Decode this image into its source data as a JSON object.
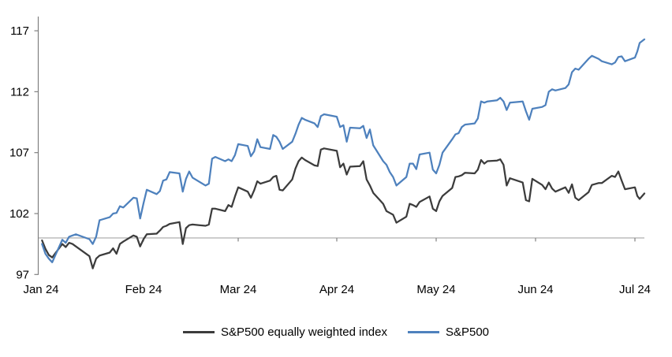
{
  "chart_data": {
    "type": "line",
    "title": "",
    "x_axis": {
      "unit": "days-from-2024-01-01",
      "tick_labels": [
        "Jan 24",
        "Feb 24",
        "Mar 24",
        "Apr 24",
        "May 24",
        "Jun 24",
        "Jul 24"
      ],
      "tick_day_offsets": [
        0,
        31,
        60,
        91,
        121,
        152,
        182
      ]
    },
    "y_axis": {
      "ticks": [
        97,
        102,
        107,
        112,
        117
      ],
      "min": 97,
      "max": 117
    },
    "baseline": {
      "value": 100
    },
    "grid": "off",
    "legend_position": "bottom",
    "day_offsets": [
      1,
      2,
      3,
      4,
      7,
      8,
      9,
      10,
      11,
      15,
      16,
      17,
      18,
      21,
      22,
      23,
      24,
      25,
      28,
      29,
      30,
      31,
      32,
      35,
      36,
      37,
      38,
      39,
      42,
      43,
      44,
      45,
      46,
      50,
      51,
      52,
      53,
      56,
      57,
      58,
      59,
      60,
      63,
      64,
      65,
      66,
      67,
      70,
      71,
      72,
      73,
      74,
      77,
      78,
      79,
      80,
      81,
      84,
      85,
      86,
      87,
      91,
      92,
      93,
      94,
      95,
      98,
      99,
      100,
      101,
      102,
      105,
      106,
      107,
      108,
      109,
      112,
      113,
      114,
      115,
      116,
      119,
      120,
      121,
      122,
      123,
      126,
      127,
      128,
      129,
      130,
      133,
      134,
      135,
      136,
      137,
      140,
      141,
      142,
      143,
      144,
      148,
      149,
      150,
      151,
      154,
      155,
      156,
      157,
      158,
      161,
      162,
      163,
      164,
      165,
      168,
      169,
      171,
      172,
      175,
      176,
      177,
      178,
      179,
      182,
      183,
      184,
      186
    ],
    "series": [
      {
        "name": "S&P500 equally weighted index",
        "color": "#3C3C3C",
        "values": [
          99.8,
          99.1,
          98.6,
          98.4,
          99.5,
          99.25,
          99.6,
          99.5,
          99.3,
          98.5,
          97.5,
          98.3,
          98.55,
          98.8,
          99.15,
          98.7,
          99.5,
          99.7,
          100.2,
          100.1,
          99.3,
          99.9,
          100.3,
          100.35,
          100.6,
          100.9,
          101.0,
          101.15,
          101.3,
          99.5,
          100.8,
          101.05,
          101.1,
          101.0,
          101.1,
          102.4,
          102.4,
          102.2,
          102.7,
          102.55,
          103.4,
          104.15,
          103.8,
          103.3,
          103.9,
          104.65,
          104.45,
          104.7,
          105.0,
          105.1,
          103.95,
          103.9,
          104.8,
          105.7,
          106.3,
          106.6,
          106.4,
          105.95,
          105.9,
          107.25,
          107.35,
          107.15,
          105.8,
          106.1,
          105.2,
          105.85,
          105.9,
          106.3,
          104.8,
          104.3,
          103.7,
          102.8,
          102.2,
          102.05,
          101.9,
          101.25,
          101.75,
          102.8,
          102.7,
          102.55,
          102.95,
          103.4,
          102.4,
          102.2,
          103.0,
          103.45,
          104.1,
          105.0,
          105.05,
          105.15,
          105.35,
          105.3,
          105.6,
          106.4,
          106.1,
          106.3,
          106.35,
          106.45,
          106.0,
          104.3,
          104.9,
          104.55,
          103.1,
          103.0,
          104.85,
          104.35,
          104.0,
          104.55,
          104.05,
          103.8,
          104.15,
          103.7,
          104.4,
          103.3,
          103.1,
          103.75,
          104.35,
          104.5,
          104.5,
          105.1,
          105.0,
          105.45,
          104.7,
          104.0,
          104.15,
          103.45,
          103.2,
          103.65
        ]
      },
      {
        "name": "S&P500",
        "color": "#4E81BD",
        "values": [
          99.5,
          98.7,
          98.3,
          98.0,
          99.85,
          99.6,
          100.1,
          100.2,
          100.3,
          99.9,
          99.5,
          100.1,
          101.45,
          101.7,
          102.0,
          102.05,
          102.6,
          102.5,
          103.3,
          103.25,
          101.6,
          102.85,
          103.95,
          103.6,
          103.85,
          104.7,
          104.8,
          105.4,
          105.3,
          103.8,
          104.85,
          105.45,
          104.95,
          104.3,
          104.45,
          106.5,
          106.65,
          106.3,
          106.45,
          106.3,
          106.8,
          107.7,
          107.55,
          106.7,
          107.1,
          108.1,
          107.45,
          107.3,
          108.45,
          108.3,
          107.9,
          107.3,
          107.9,
          108.55,
          109.3,
          109.85,
          109.7,
          109.4,
          109.1,
          110.0,
          110.15,
          109.95,
          109.1,
          109.25,
          107.9,
          109.05,
          109.0,
          109.2,
          108.2,
          108.9,
          107.6,
          106.3,
          106.0,
          105.4,
          105.0,
          104.3,
          105.0,
          106.1,
          106.1,
          105.65,
          106.85,
          107.0,
          105.6,
          105.3,
          106.0,
          107.0,
          108.1,
          108.5,
          108.6,
          109.1,
          109.3,
          109.4,
          109.8,
          111.2,
          111.1,
          111.2,
          111.3,
          111.5,
          111.2,
          110.5,
          111.1,
          111.2,
          110.4,
          109.7,
          110.6,
          110.75,
          110.9,
          112.0,
          112.2,
          112.1,
          112.3,
          112.6,
          113.6,
          113.9,
          113.8,
          114.7,
          114.95,
          114.7,
          114.5,
          114.25,
          114.4,
          114.85,
          114.9,
          114.5,
          114.8,
          115.3,
          116.0,
          116.3
        ]
      }
    ]
  },
  "colors": {
    "background": "#FFFFFF",
    "axis": "#808080",
    "baseline": "#A6A6A6",
    "text": "#000000"
  }
}
